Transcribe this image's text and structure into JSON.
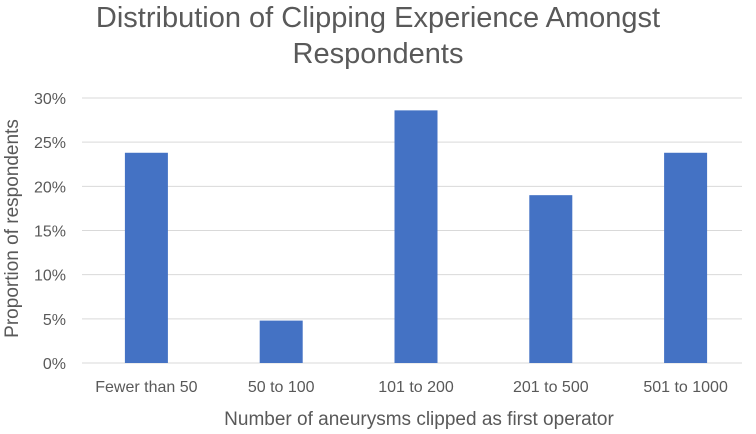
{
  "chart_data": {
    "type": "bar",
    "title": "Distribution of Clipping Experience Amongst\nRespondents",
    "xlabel": "Number of aneurysms clipped as first operator",
    "ylabel": "Proportion of respondents",
    "categories": [
      "Fewer than 50",
      "50 to 100",
      "101 to 200",
      "201 to 500",
      "501 to 1000"
    ],
    "values": [
      23.8,
      4.8,
      28.6,
      19.0,
      23.8
    ],
    "ylim": [
      0,
      30
    ],
    "yticks": [
      0,
      5,
      10,
      15,
      20,
      25,
      30
    ],
    "ytick_labels": [
      "0%",
      "5%",
      "10%",
      "15%",
      "20%",
      "25%",
      "30%"
    ],
    "grid": true,
    "legend": "none",
    "bar_color": "#4472C4",
    "grid_color": "#D9D9D9",
    "text_color": "#595959"
  }
}
